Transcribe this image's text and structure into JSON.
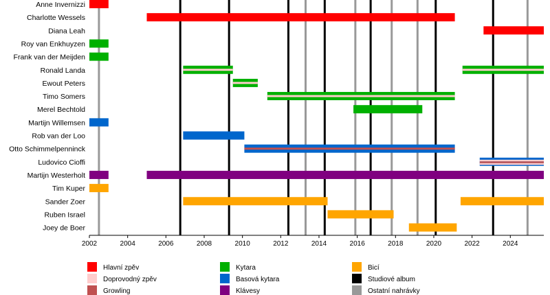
{
  "chart_data": {
    "type": "timeline",
    "title": "",
    "xlim": [
      2002,
      2025.75
    ],
    "x_ticks": [
      2002,
      2004,
      2006,
      2008,
      2010,
      2012,
      2014,
      2016,
      2018,
      2020,
      2022,
      2024
    ],
    "role_colors": {
      "Hlavní zpěv": "#ff0000",
      "Doprovodný zpěv": "#ffcccc",
      "Growling": "#c05050",
      "Kytara": "#00b000",
      "Basová kytara": "#0066cc",
      "Klávesy": "#800080",
      "Bicí": "#ffa500",
      "Studiové album": "#000000",
      "Ostatní nahrávky": "#999999"
    },
    "members": [
      {
        "name": "Anne Invernizzi",
        "periods": [
          {
            "start": 2002.0,
            "end": 2003.0,
            "roles": [
              "Hlavní zpěv"
            ]
          }
        ]
      },
      {
        "name": "Charlotte Wessels",
        "periods": [
          {
            "start": 2005.0,
            "end": 2021.1,
            "roles": [
              "Hlavní zpěv"
            ]
          }
        ]
      },
      {
        "name": "Diana Leah",
        "periods": [
          {
            "start": 2022.6,
            "end": 2025.75,
            "roles": [
              "Hlavní zpěv"
            ]
          }
        ]
      },
      {
        "name": "Roy van Enkhuyzen",
        "periods": [
          {
            "start": 2002.0,
            "end": 2003.0,
            "roles": [
              "Kytara"
            ]
          }
        ]
      },
      {
        "name": "Frank van der Meijden",
        "periods": [
          {
            "start": 2002.0,
            "end": 2003.0,
            "roles": [
              "Kytara"
            ]
          }
        ]
      },
      {
        "name": "Ronald Landa",
        "periods": [
          {
            "start": 2006.9,
            "end": 2009.5,
            "roles": [
              "Kytara",
              "Doprovodný zpěv"
            ]
          },
          {
            "start": 2021.5,
            "end": 2025.75,
            "roles": [
              "Kytara",
              "Doprovodný zpěv"
            ]
          }
        ]
      },
      {
        "name": "Ewout Peters",
        "periods": [
          {
            "start": 2009.5,
            "end": 2010.8,
            "roles": [
              "Kytara",
              "Doprovodný zpěv"
            ]
          }
        ]
      },
      {
        "name": "Timo Somers",
        "periods": [
          {
            "start": 2011.3,
            "end": 2021.1,
            "roles": [
              "Kytara",
              "Doprovodný zpěv"
            ]
          }
        ]
      },
      {
        "name": "Merel Bechtold",
        "periods": [
          {
            "start": 2015.8,
            "end": 2019.4,
            "roles": [
              "Kytara"
            ]
          }
        ]
      },
      {
        "name": "Martijn Willemsen",
        "periods": [
          {
            "start": 2002.0,
            "end": 2003.0,
            "roles": [
              "Basová kytara"
            ]
          }
        ]
      },
      {
        "name": "Rob van der Loo",
        "periods": [
          {
            "start": 2006.9,
            "end": 2010.1,
            "roles": [
              "Basová kytara"
            ]
          }
        ]
      },
      {
        "name": "Otto Schimmelpenninck",
        "periods": [
          {
            "start": 2010.1,
            "end": 2021.1,
            "roles": [
              "Basová kytara",
              "Growling"
            ]
          }
        ]
      },
      {
        "name": "Ludovico Cioffi",
        "periods": [
          {
            "start": 2022.4,
            "end": 2025.75,
            "roles": [
              "Basová kytara",
              "Growling",
              "Doprovodný zpěv"
            ]
          }
        ]
      },
      {
        "name": "Martijn Westerholt",
        "periods": [
          {
            "start": 2002.0,
            "end": 2003.0,
            "roles": [
              "Klávesy"
            ]
          },
          {
            "start": 2005.0,
            "end": 2025.75,
            "roles": [
              "Klávesy"
            ]
          }
        ]
      },
      {
        "name": "Tim Kuper",
        "periods": [
          {
            "start": 2002.0,
            "end": 2003.0,
            "roles": [
              "Bicí"
            ]
          }
        ]
      },
      {
        "name": "Sander Zoer",
        "periods": [
          {
            "start": 2006.9,
            "end": 2014.45,
            "roles": [
              "Bicí"
            ]
          },
          {
            "start": 2021.4,
            "end": 2025.75,
            "roles": [
              "Bicí"
            ]
          }
        ]
      },
      {
        "name": "Ruben Israel",
        "periods": [
          {
            "start": 2014.45,
            "end": 2017.9,
            "roles": [
              "Bicí"
            ]
          }
        ]
      },
      {
        "name": "Joey de Boer",
        "periods": [
          {
            "start": 2018.7,
            "end": 2021.2,
            "roles": [
              "Bicí"
            ]
          }
        ]
      }
    ],
    "studio_albums": [
      2006.75,
      2009.3,
      2012.4,
      2014.3,
      2016.7,
      2020.1,
      2023.1
    ],
    "other_releases": [
      2002.5,
      2013.3,
      2015.9,
      2017.8,
      2019.15,
      2024.9
    ],
    "legend": [
      [
        "Hlavní zpěv",
        "Doprovodný zpěv",
        "Growling"
      ],
      [
        "Kytara",
        "Basová kytara",
        "Klávesy"
      ],
      [
        "Bicí",
        "Studiové album",
        "Ostatní nahrávky"
      ]
    ]
  }
}
